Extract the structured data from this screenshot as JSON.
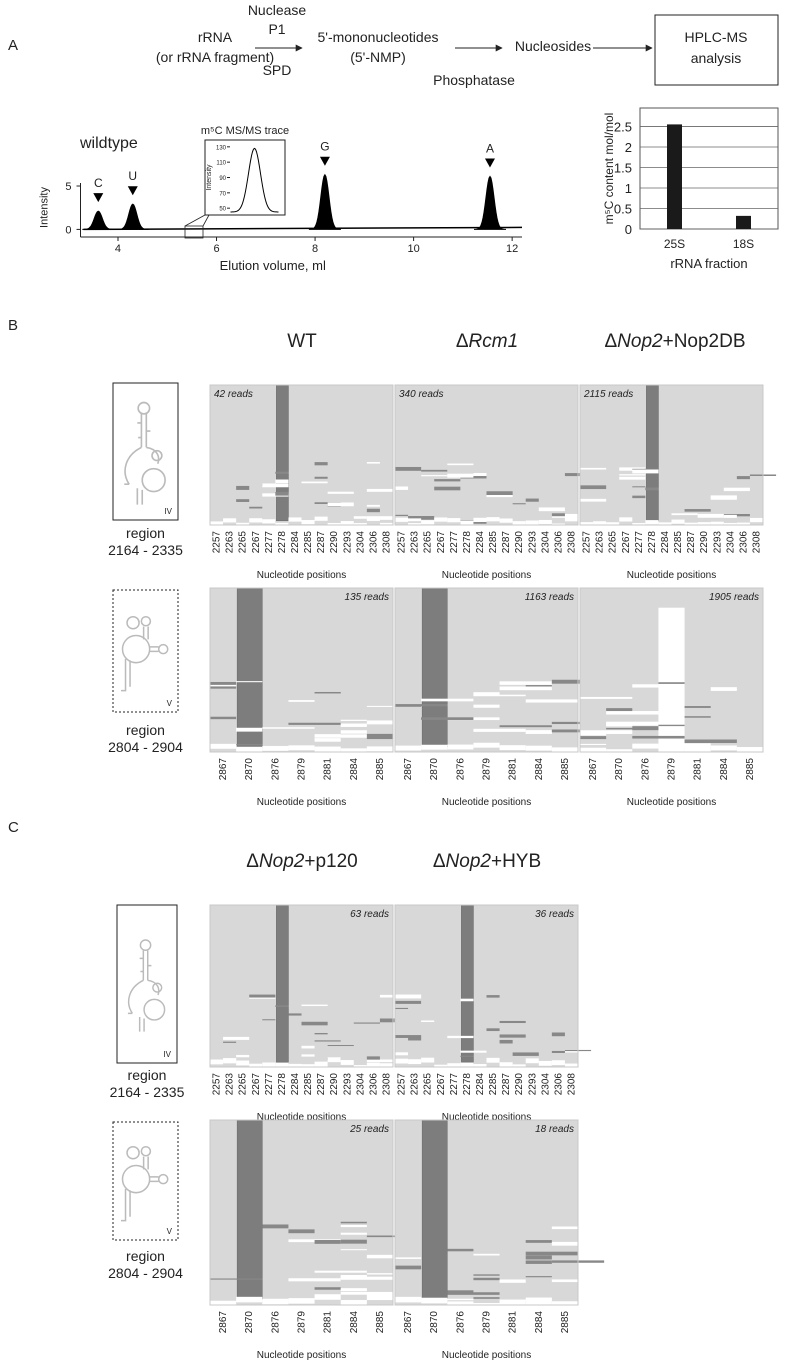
{
  "figure": {
    "panel_labels": [
      "A",
      "B",
      "C"
    ],
    "workflow": {
      "input": [
        "rRNA",
        "(or rRNA fragment)"
      ],
      "enzyme_1": [
        "Nuclease",
        "P1"
      ],
      "enzyme_1_alt": "SPD",
      "product": [
        "5'-mononucleotides",
        "(5'-NMP)"
      ],
      "nucleosides": "Nucleosides",
      "enzyme_2": "Phosphatase",
      "analysis": [
        "HPLC-MS",
        "analysis"
      ]
    },
    "heatmaps": {
      "axis_label": "Nucleotide positions",
      "regions": [
        {
          "name": "region",
          "range": "2164 - 2335",
          "domain": "IV",
          "positions": [
            "2257",
            "2263",
            "2265",
            "2267",
            "2277",
            "2278",
            "2284",
            "2285",
            "2287",
            "2290",
            "2293",
            "2304",
            "2306",
            "2308"
          ]
        },
        {
          "name": "region",
          "range": "2804 - 2904",
          "domain": "V",
          "positions": [
            "2867",
            "2870",
            "2876",
            "2879",
            "2881",
            "2884",
            "2885"
          ]
        }
      ],
      "panel_B": {
        "samples": [
          {
            "title": [
              {
                "text": "WT"
              }
            ]
          },
          {
            "title": [
              {
                "text": "Δ"
              },
              {
                "text": "Rcm1",
                "italic": true
              }
            ]
          },
          {
            "title": [
              {
                "text": "Δ"
              },
              {
                "text": "Nop2",
                "italic": true
              },
              {
                "text": "+Nop2DB"
              }
            ]
          }
        ],
        "reads": [
          [
            "42 reads",
            "340 reads",
            "2115 reads"
          ],
          [
            "135 reads",
            "1163 reads",
            "1905 reads"
          ]
        ]
      },
      "panel_C": {
        "samples": [
          {
            "title": [
              {
                "text": "Δ"
              },
              {
                "text": "Nop2",
                "italic": true
              },
              {
                "text": "+p120"
              }
            ]
          },
          {
            "title": [
              {
                "text": "Δ"
              },
              {
                "text": "Nop2",
                "italic": true
              },
              {
                "text": "+HYB"
              }
            ]
          }
        ],
        "reads": [
          [
            "63 reads",
            "36 reads"
          ],
          [
            "25 reads",
            "18 reads"
          ]
        ]
      }
    }
  },
  "chart_data": [
    {
      "type": "peaks",
      "title": "wildtype",
      "x_label": "Elution volume, ml",
      "y_label": "Intensity",
      "x": [
        3.6,
        4.3,
        8.2,
        11.55
      ],
      "values": [
        2.1,
        2.9,
        6.3,
        6.1
      ],
      "labels": [
        "C",
        "U",
        "G",
        "A"
      ],
      "xlim": [
        3.3,
        12.2
      ],
      "ylim": [
        -0.3,
        6.5
      ],
      "xticks": [
        4,
        6,
        8,
        10,
        12
      ],
      "yticks": [
        0,
        5
      ],
      "filled": true,
      "color": "#000000"
    },
    {
      "type": "peaks",
      "title": "m⁵C MS/MS trace",
      "y_label": "Intensity",
      "values": [
        128
      ],
      "ylim": [
        45,
        135
      ],
      "yticks": [
        50,
        70,
        90,
        110,
        130
      ],
      "filled": false,
      "color": "#000000"
    },
    {
      "type": "bar",
      "y_label": "m⁵C content mol/mol",
      "x_label": "rRNA fraction",
      "categories": [
        "25S",
        "18S"
      ],
      "values": [
        2.55,
        0.32
      ],
      "ylim": [
        0,
        2.95
      ],
      "yticks": [
        0,
        0.5,
        1,
        1.5,
        2,
        2.5
      ],
      "grid": true,
      "color": "#1a1a1a"
    }
  ]
}
